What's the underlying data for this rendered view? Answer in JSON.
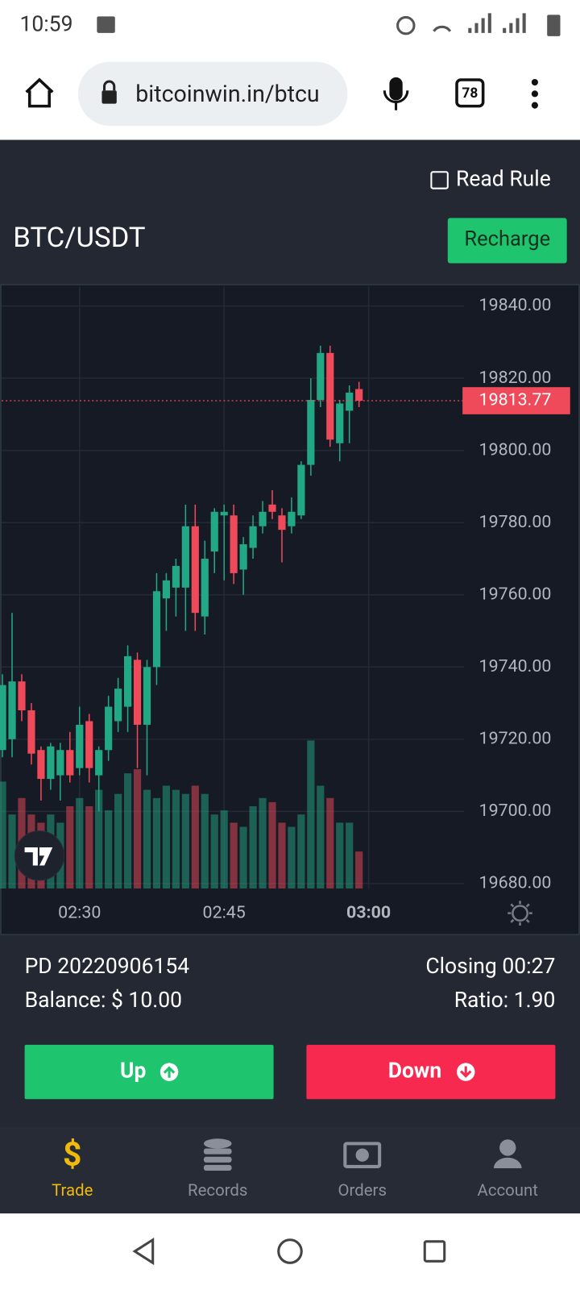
{
  "status_bar": {
    "time": "10:59"
  },
  "browser": {
    "url": "bitcoinwin.in/btcu",
    "tabs": "78"
  },
  "header": {
    "read_rule": "Read Rule",
    "pair": "BTC/USDT",
    "recharge": "Recharge"
  },
  "chart_data": {
    "type": "candlestick",
    "categories": [
      null,
      null,
      null,
      null,
      null,
      null,
      null,
      null,
      "02:30",
      null,
      null,
      null,
      null,
      null,
      null,
      null,
      null,
      null,
      null,
      null,
      null,
      null,
      null,
      "02:45",
      null,
      null,
      null,
      null,
      null,
      null,
      null,
      null,
      null,
      null,
      null,
      null,
      null,
      null,
      "03:00"
    ],
    "open": [
      19717,
      19720,
      19736,
      19728,
      19717,
      19709,
      19710,
      19717,
      19712,
      19725,
      19710,
      19717,
      19725,
      19729,
      19742,
      19724,
      19740,
      19759,
      19762,
      19762,
      19779,
      19754,
      19772,
      19782,
      19782,
      19767,
      19773,
      19779,
      19785,
      19782,
      19779,
      19782,
      19796,
      19814,
      19827,
      19802,
      19811,
      19817,
      null
    ],
    "high": [
      19738,
      19755,
      19738,
      19730,
      19718,
      19719,
      19719,
      19722,
      19729,
      19727,
      19718,
      19732,
      19737,
      19746,
      19744,
      19742,
      19766,
      19766,
      19770,
      19785,
      19785,
      19775,
      19784,
      19785,
      19785,
      19776,
      19782,
      19786,
      19789,
      19784,
      19787,
      19797,
      19820,
      19829,
      19829,
      19814,
      19818,
      19819,
      null
    ],
    "low": [
      19715,
      19715,
      19725,
      19713,
      19703,
      19706,
      19703,
      19708,
      19710,
      19708,
      19700,
      19714,
      19722,
      19722,
      19712,
      19710,
      19735,
      19750,
      19754,
      19750,
      19750,
      19749,
      19766,
      19764,
      19763,
      19760,
      19770,
      19777,
      19781,
      19769,
      19777,
      19781,
      19793,
      19812,
      19801,
      19797,
      19802,
      19812,
      null
    ],
    "close": [
      19735,
      19736,
      19728,
      19716,
      19709,
      19718,
      19717,
      19710,
      19724,
      19712,
      19717,
      19729,
      19734,
      19743,
      19724,
      19740,
      19761,
      19764,
      19768,
      19779,
      19755,
      19770,
      19783,
      19783,
      19766,
      19774,
      19779,
      19783,
      19783,
      19778,
      19783,
      19796,
      19814,
      19827,
      19803,
      19813,
      19816,
      19813.77,
      null
    ],
    "volume": [
      130,
      90,
      110,
      90,
      80,
      90,
      80,
      100,
      110,
      100,
      120,
      95,
      115,
      140,
      145,
      120,
      110,
      125,
      120,
      115,
      125,
      115,
      90,
      95,
      80,
      75,
      100,
      110,
      105,
      80,
      75,
      90,
      180,
      125,
      110,
      80,
      80,
      45,
      null
    ],
    "up_color": "#22a884",
    "down_color": "#ef4a5a",
    "last_price": 19813.77,
    "ylim": [
      19680,
      19840
    ],
    "yticks": [
      {
        "value": 19680,
        "label": "19680.00"
      },
      {
        "value": 19700,
        "label": "19700.00"
      },
      {
        "value": 19720,
        "label": "19720.00"
      },
      {
        "value": 19740,
        "label": "19740.00"
      },
      {
        "value": 19760,
        "label": "19760.00"
      },
      {
        "value": 19780,
        "label": "19780.00"
      },
      {
        "value": 19800,
        "label": "19800.00"
      },
      {
        "value": 19820,
        "label": "19820.00"
      },
      {
        "value": 19840,
        "label": "19840.00"
      }
    ],
    "grid": true
  },
  "info": {
    "period": "PD 20220906154",
    "balance": "Balance: $ 10.00",
    "closing": "Closing 00:27",
    "ratio": "Ratio: 1.90"
  },
  "actions": {
    "up": "Up",
    "down": "Down"
  },
  "nav": {
    "trade": "Trade",
    "records": "Records",
    "orders": "Orders",
    "account": "Account"
  }
}
